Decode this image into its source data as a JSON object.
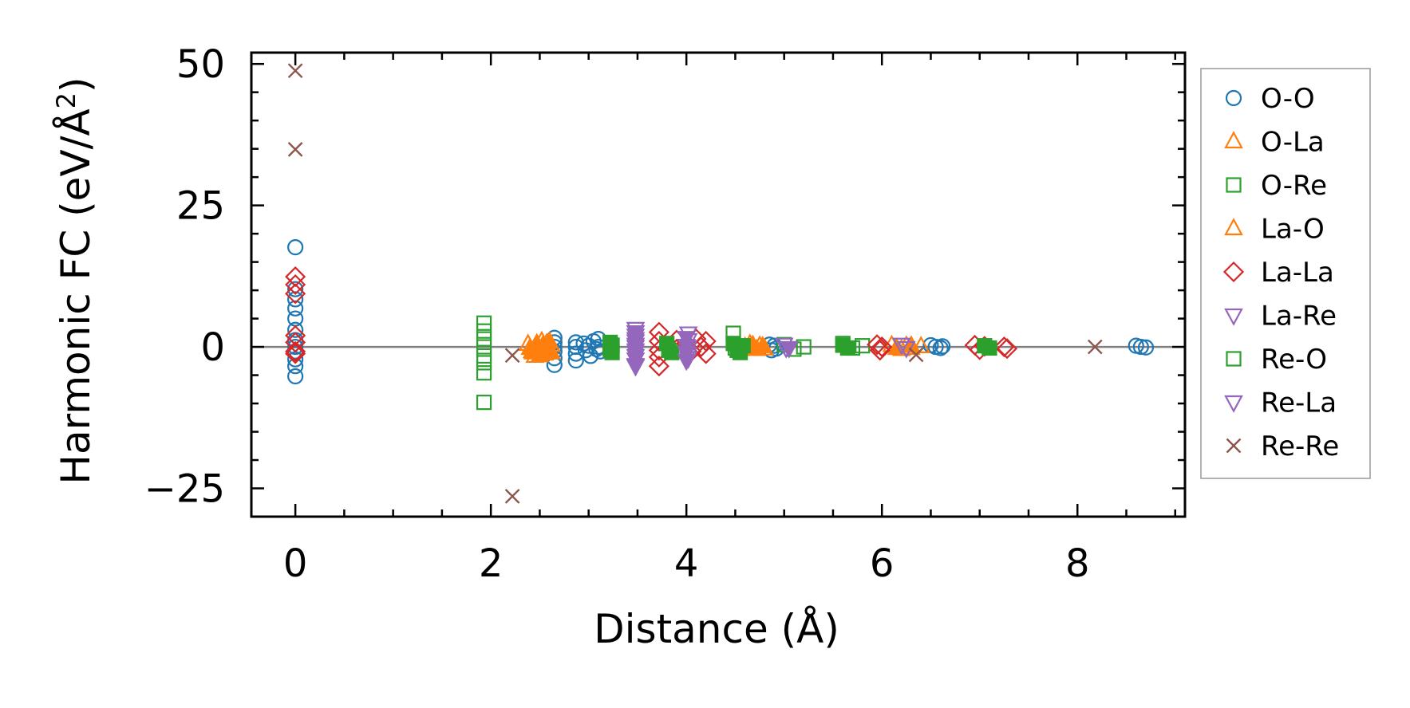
{
  "chart_data": {
    "type": "scatter",
    "title": "",
    "xlabel": "Distance (Å)",
    "ylabel_base": "Harmonic FC (eV/Å",
    "ylabel_sup": "2",
    "ylabel_close": ")",
    "xlim": [
      -0.45,
      9.1
    ],
    "ylim": [
      -30,
      52
    ],
    "xticks": [
      0,
      2,
      4,
      6,
      8
    ],
    "xtick_labels": [
      "0",
      "2",
      "4",
      "6",
      "8"
    ],
    "yticks": [
      -25,
      0,
      25,
      50
    ],
    "ytick_labels": [
      "−25",
      "0",
      "25",
      "50"
    ],
    "zero_line": true,
    "grid": false,
    "legend_position": "outside-right",
    "series": [
      {
        "name": "O-O",
        "marker": "circle",
        "color": "#1f77b4",
        "points": [
          [
            0,
            17.6
          ],
          [
            0,
            10.2
          ],
          [
            0,
            8.4
          ],
          [
            0,
            6.8
          ],
          [
            0,
            5.0
          ],
          [
            0,
            3.0
          ],
          [
            0,
            1.2
          ],
          [
            0,
            0
          ],
          [
            0,
            -0.8
          ],
          [
            0,
            -2.2
          ],
          [
            0,
            -3.4
          ],
          [
            0,
            -5.2
          ],
          [
            2.65,
            1.6
          ],
          [
            2.65,
            0.8
          ],
          [
            2.65,
            0
          ],
          [
            2.65,
            -0.8
          ],
          [
            2.65,
            -2.0
          ],
          [
            2.65,
            -3.2
          ],
          [
            2.87,
            0.8
          ],
          [
            2.87,
            0
          ],
          [
            2.87,
            -1.2
          ],
          [
            2.87,
            -2.4
          ],
          [
            2.95,
            0.6
          ],
          [
            2.97,
            -0.6
          ],
          [
            3.0,
            0.2
          ],
          [
            3.02,
            -1.6
          ],
          [
            3.05,
            1.0
          ],
          [
            3.08,
            -0.4
          ],
          [
            3.1,
            1.4
          ],
          [
            3.1,
            0
          ],
          [
            3.12,
            -0.8
          ],
          [
            4.85,
            0.4
          ],
          [
            4.87,
            -0.6
          ],
          [
            4.9,
            0.2
          ],
          [
            4.92,
            -0.3
          ],
          [
            6.5,
            0.3
          ],
          [
            6.55,
            0
          ],
          [
            6.6,
            -0.2
          ],
          [
            6.62,
            0.1
          ],
          [
            8.6,
            0.2
          ],
          [
            8.65,
            0
          ],
          [
            8.7,
            -0.1
          ]
        ]
      },
      {
        "name": "O-La",
        "marker": "triangle-up",
        "color": "#ff7f0e",
        "points": [
          [
            2.38,
            0.5
          ],
          [
            2.42,
            -0.8
          ],
          [
            2.45,
            -1.6
          ],
          [
            2.47,
            0.2
          ],
          [
            2.5,
            -0.4
          ],
          [
            2.52,
            1.0
          ],
          [
            2.55,
            -1.2
          ],
          [
            2.57,
            0.6
          ],
          [
            2.6,
            -0.6
          ],
          [
            2.62,
            0.3
          ],
          [
            4.65,
            0.5
          ],
          [
            4.7,
            -0.4
          ],
          [
            4.75,
            0.2
          ],
          [
            4.8,
            -0.3
          ],
          [
            6.1,
            0.3
          ],
          [
            6.2,
            -0.4
          ],
          [
            6.25,
            0.2
          ],
          [
            6.3,
            -0.2
          ],
          [
            6.4,
            0.1
          ]
        ]
      },
      {
        "name": "O-Re",
        "marker": "square-open",
        "color": "#2ca02c",
        "points": [
          [
            1.93,
            4.2
          ],
          [
            1.93,
            2.8
          ],
          [
            1.93,
            1.4
          ],
          [
            1.93,
            0
          ],
          [
            1.93,
            -1.6
          ],
          [
            1.93,
            -2.8
          ],
          [
            1.93,
            -4.6
          ],
          [
            1.93,
            -9.8
          ],
          [
            4.48,
            2.4
          ],
          [
            4.5,
            -0.2
          ],
          [
            5.0,
            0.4
          ],
          [
            5.1,
            -0.4
          ],
          [
            5.2,
            0
          ],
          [
            5.6,
            0.6
          ],
          [
            5.7,
            -0.2
          ],
          [
            5.8,
            0.2
          ]
        ]
      },
      {
        "name": "La-O",
        "marker": "triangle-filled",
        "color": "#ff7f0e",
        "points": [
          [
            2.4,
            -0.2
          ],
          [
            2.43,
            -1.0
          ],
          [
            2.47,
            0.6
          ],
          [
            2.5,
            -1.5
          ],
          [
            2.53,
            0.2
          ],
          [
            2.56,
            -0.6
          ],
          [
            2.6,
            0.9
          ],
          [
            2.62,
            -1.0
          ],
          [
            4.6,
            0
          ],
          [
            4.68,
            0.3
          ],
          [
            4.72,
            -0.4
          ],
          [
            4.78,
            0.1
          ],
          [
            6.15,
            -0.2
          ],
          [
            6.3,
            0.2
          ]
        ]
      },
      {
        "name": "La-La",
        "marker": "diamond",
        "color": "#d62728",
        "points": [
          [
            0,
            12.4
          ],
          [
            0,
            11.0
          ],
          [
            0,
            9.4
          ],
          [
            0,
            2.0
          ],
          [
            0,
            0.8
          ],
          [
            0,
            -0.8
          ],
          [
            0,
            -1.2
          ],
          [
            3.72,
            2.6
          ],
          [
            3.72,
            1.0
          ],
          [
            3.72,
            -0.6
          ],
          [
            3.72,
            -1.8
          ],
          [
            3.72,
            -3.4
          ],
          [
            3.9,
            1.2
          ],
          [
            3.9,
            -0.4
          ],
          [
            4.0,
            0.6
          ],
          [
            4.05,
            -0.8
          ],
          [
            4.1,
            1.4
          ],
          [
            4.15,
            0
          ],
          [
            4.2,
            1.0
          ],
          [
            4.2,
            -1.2
          ],
          [
            5.95,
            0.4
          ],
          [
            5.98,
            -0.6
          ],
          [
            6.0,
            0
          ],
          [
            6.95,
            0.3
          ],
          [
            7.0,
            -0.5
          ],
          [
            7.05,
            0.1
          ],
          [
            7.25,
            0
          ],
          [
            7.28,
            -0.3
          ]
        ]
      },
      {
        "name": "La-Re",
        "marker": "triangle-down",
        "color": "#9467bd",
        "points": [
          [
            3.48,
            3.2
          ],
          [
            3.48,
            2.0
          ],
          [
            3.48,
            1.0
          ],
          [
            3.48,
            0
          ],
          [
            3.48,
            -1.0
          ],
          [
            3.48,
            -2.2
          ],
          [
            3.48,
            -3.4
          ],
          [
            4.02,
            2.4
          ],
          [
            4.02,
            1.2
          ],
          [
            4.02,
            0
          ],
          [
            4.02,
            -1.2
          ],
          [
            4.02,
            -2.0
          ],
          [
            5.0,
            0.4
          ],
          [
            5.02,
            -0.2
          ],
          [
            6.2,
            0.4
          ],
          [
            6.25,
            -0.2
          ]
        ]
      },
      {
        "name": "Re-O",
        "marker": "square-filled",
        "color": "#2ca02c",
        "points": [
          [
            3.22,
            0.8
          ],
          [
            3.22,
            -0.4
          ],
          [
            3.24,
            -1.0
          ],
          [
            3.24,
            0.3
          ],
          [
            3.8,
            0.6
          ],
          [
            3.82,
            -0.6
          ],
          [
            3.85,
            -1.0
          ],
          [
            4.48,
            0.6
          ],
          [
            4.52,
            -0.6
          ],
          [
            4.55,
            -1.0
          ],
          [
            4.58,
            0.2
          ],
          [
            5.6,
            0.3
          ],
          [
            5.65,
            -0.2
          ],
          [
            7.05,
            0.2
          ],
          [
            7.1,
            -0.2
          ]
        ]
      },
      {
        "name": "Re-La",
        "marker": "triangle-down-filled",
        "color": "#9467bd",
        "points": [
          [
            3.48,
            2.6
          ],
          [
            3.48,
            1.4
          ],
          [
            3.48,
            0.4
          ],
          [
            3.48,
            -0.6
          ],
          [
            3.48,
            -1.6
          ],
          [
            3.48,
            -3.2
          ],
          [
            4.0,
            1.6
          ],
          [
            4.0,
            0.2
          ],
          [
            4.0,
            -1.0
          ],
          [
            4.0,
            -2.4
          ],
          [
            5.05,
            -0.2
          ]
        ]
      },
      {
        "name": "Re-Re",
        "marker": "x",
        "color": "#8c564b",
        "points": [
          [
            0,
            48.8
          ],
          [
            0,
            34.9
          ],
          [
            2.22,
            -1.5
          ],
          [
            2.22,
            -26.4
          ],
          [
            6.35,
            -1.4
          ],
          [
            8.18,
            0
          ]
        ]
      }
    ],
    "legend": [
      {
        "label": "O-O",
        "marker": "circle",
        "color": "#1f77b4"
      },
      {
        "label": "O-La",
        "marker": "triangle-up",
        "color": "#ff7f0e"
      },
      {
        "label": "O-Re",
        "marker": "square-open",
        "color": "#2ca02c"
      },
      {
        "label": "La-O",
        "marker": "triangle-up",
        "color": "#ff7f0e"
      },
      {
        "label": "La-La",
        "marker": "diamond",
        "color": "#d62728"
      },
      {
        "label": "La-Re",
        "marker": "triangle-down",
        "color": "#9467bd"
      },
      {
        "label": "Re-O",
        "marker": "square-open",
        "color": "#2ca02c"
      },
      {
        "label": "Re-La",
        "marker": "triangle-down",
        "color": "#9467bd"
      },
      {
        "label": "Re-Re",
        "marker": "x",
        "color": "#8c564b"
      }
    ]
  }
}
